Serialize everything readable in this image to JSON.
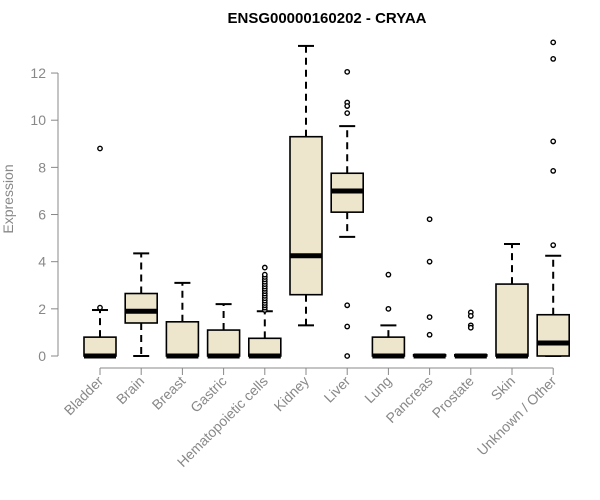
{
  "chart_data": {
    "type": "boxplot",
    "title": "ENSG00000160202 - CRYAA",
    "xlabel": "",
    "ylabel": "Expression",
    "ylim": [
      -0.3,
      13.3
    ],
    "yticks": [
      0,
      2,
      4,
      6,
      8,
      10,
      12
    ],
    "grid": false,
    "colors": {
      "box_fill": "#ede6cd",
      "box_stroke": "#000000",
      "axis": "#888888",
      "outlier": "#000000"
    },
    "categories": [
      "Bladder",
      "Brain",
      "Breast",
      "Gastric",
      "Hematopoietic cells",
      "Kidney",
      "Liver",
      "Lung",
      "Pancreas",
      "Prostate",
      "Skin",
      "Unknown / Other"
    ],
    "boxes": [
      {
        "q1": 0.0,
        "median": 0.0,
        "q3": 0.8,
        "whisker_low": 0.0,
        "whisker_high": 1.95,
        "outliers": [
          8.8,
          2.05
        ]
      },
      {
        "q1": 1.4,
        "median": 1.9,
        "q3": 2.65,
        "whisker_low": 0.0,
        "whisker_high": 4.35,
        "outliers": []
      },
      {
        "q1": 0.0,
        "median": 0.0,
        "q3": 1.45,
        "whisker_low": 0.0,
        "whisker_high": 3.1,
        "outliers": []
      },
      {
        "q1": 0.0,
        "median": 0.0,
        "q3": 1.1,
        "whisker_low": 0.0,
        "whisker_high": 2.2,
        "outliers": []
      },
      {
        "q1": 0.0,
        "median": 0.0,
        "q3": 0.75,
        "whisker_low": 0.0,
        "whisker_high": 1.9,
        "outliers": [
          1.95,
          2.05,
          2.15,
          2.25,
          2.35,
          2.45,
          2.55,
          2.65,
          2.75,
          2.85,
          2.95,
          3.05,
          3.15,
          3.25,
          3.35,
          3.45,
          3.75
        ]
      },
      {
        "q1": 2.6,
        "median": 4.25,
        "q3": 9.3,
        "whisker_low": 1.3,
        "whisker_high": 13.15,
        "outliers": []
      },
      {
        "q1": 6.1,
        "median": 7.0,
        "q3": 7.75,
        "whisker_low": 5.05,
        "whisker_high": 9.75,
        "outliers": [
          12.05,
          10.75,
          10.6,
          10.3,
          2.15,
          1.25,
          0.0
        ]
      },
      {
        "q1": 0.0,
        "median": 0.0,
        "q3": 0.8,
        "whisker_low": 0.0,
        "whisker_high": 1.3,
        "outliers": [
          3.45,
          2.0
        ]
      },
      {
        "q1": 0.0,
        "median": 0.0,
        "q3": 0.05,
        "whisker_low": 0.0,
        "whisker_high": 0.05,
        "outliers": [
          5.8,
          4.0,
          1.65,
          0.9
        ]
      },
      {
        "q1": 0.0,
        "median": 0.0,
        "q3": 0.05,
        "whisker_low": 0.0,
        "whisker_high": 0.05,
        "outliers": [
          1.85,
          1.7,
          1.3,
          1.2
        ]
      },
      {
        "q1": 0.0,
        "median": 0.0,
        "q3": 3.05,
        "whisker_low": 0.0,
        "whisker_high": 4.75,
        "outliers": []
      },
      {
        "q1": 0.0,
        "median": 0.55,
        "q3": 1.75,
        "whisker_low": 0.0,
        "whisker_high": 4.25,
        "outliers": [
          13.3,
          12.6,
          9.1,
          7.85,
          4.7
        ]
      }
    ]
  }
}
